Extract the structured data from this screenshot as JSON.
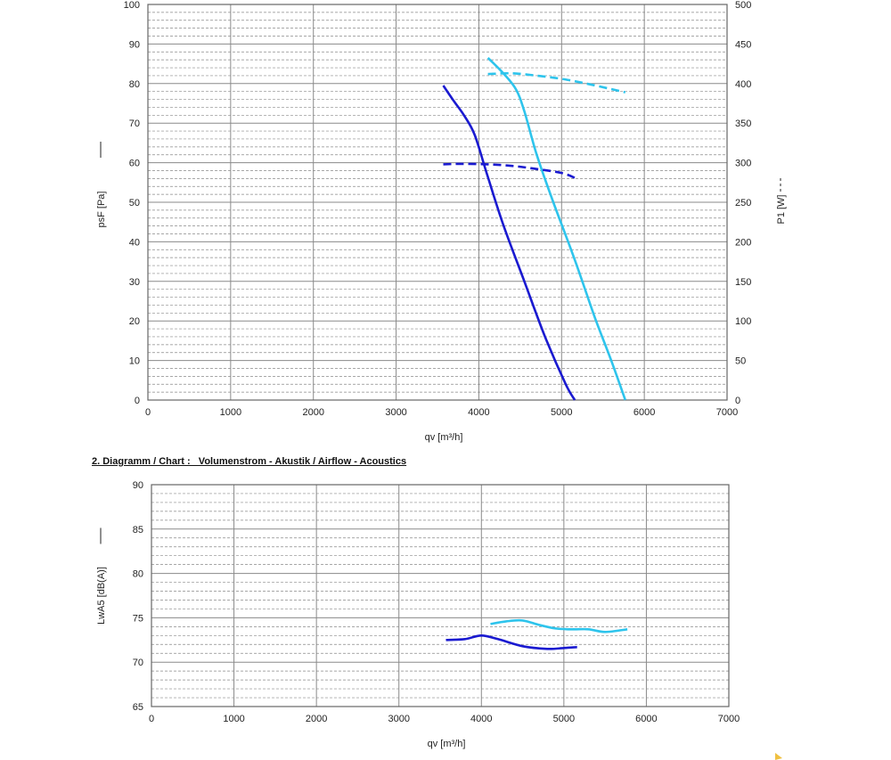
{
  "section_title": "2. Diagramm / Chart :   Volumenstrom - Akustik / Airflow - Acoustics",
  "chart_data": [
    {
      "type": "line",
      "xlabel": "qv [m³/h]",
      "ylabel": "psF [Pa]",
      "ylabel_secondary": "P1 [W]",
      "xlim": [
        0,
        7000
      ],
      "ylim": [
        0,
        100
      ],
      "ylim_secondary": [
        0,
        500
      ],
      "x_ticks": [
        "0",
        "1000",
        "2000",
        "3000",
        "4000",
        "5000",
        "6000",
        "7000"
      ],
      "y_ticks": [
        "0",
        "10",
        "20",
        "30",
        "40",
        "50",
        "60",
        "70",
        "80",
        "90",
        "100"
      ],
      "y_ticks_secondary": [
        "0",
        "50",
        "100",
        "150",
        "200",
        "250",
        "300",
        "350",
        "400",
        "450",
        "500"
      ],
      "grid": true,
      "colors": {
        "dark": "#1a1ad0",
        "light": "#2ec4ec"
      },
      "series": [
        {
          "axis": "left",
          "style": "solid",
          "color": "#1a1ad0",
          "x": [
            3570,
            3700,
            3820,
            3950,
            4100,
            4300,
            4550,
            4800,
            5050,
            5160
          ],
          "y": [
            79.5,
            75.5,
            72,
            67,
            57,
            44,
            30,
            16,
            4,
            0
          ]
        },
        {
          "axis": "left",
          "style": "solid",
          "color": "#2ec4ec",
          "x": [
            4110,
            4300,
            4450,
            4550,
            4700,
            4900,
            5150,
            5400,
            5600,
            5770
          ],
          "y": [
            86.5,
            82.5,
            78.5,
            73,
            62,
            50,
            36,
            21,
            10,
            0
          ]
        },
        {
          "axis": "right",
          "style": "dashed",
          "color": "#1a1ad0",
          "x": [
            3570,
            3800,
            4100,
            4400,
            4700,
            5000,
            5160
          ],
          "y": [
            298,
            298.5,
            298,
            296,
            292,
            287,
            281
          ]
        },
        {
          "axis": "right",
          "style": "dashed",
          "color": "#2ec4ec",
          "x": [
            4110,
            4400,
            4700,
            5000,
            5300,
            5600,
            5770
          ],
          "y": [
            412,
            413,
            410,
            406,
            400,
            393,
            389
          ]
        }
      ]
    },
    {
      "type": "line",
      "xlabel": "qv [m³/h]",
      "ylabel": "LwA5 [dB(A)]",
      "xlim": [
        0,
        7000
      ],
      "ylim": [
        65,
        90
      ],
      "x_ticks": [
        "0",
        "1000",
        "2000",
        "3000",
        "4000",
        "5000",
        "6000",
        "7000"
      ],
      "y_ticks": [
        "65",
        "70",
        "75",
        "80",
        "85",
        "90"
      ],
      "grid": true,
      "series": [
        {
          "style": "solid",
          "color": "#1a1ad0",
          "x": [
            3570,
            3800,
            4000,
            4200,
            4500,
            4800,
            5000,
            5160
          ],
          "y": [
            72.5,
            72.6,
            73.0,
            72.6,
            71.8,
            71.5,
            71.6,
            71.7
          ]
        },
        {
          "style": "solid",
          "color": "#2ec4ec",
          "x": [
            4110,
            4300,
            4500,
            4700,
            4900,
            5100,
            5300,
            5500,
            5770
          ],
          "y": [
            74.3,
            74.6,
            74.7,
            74.2,
            73.8,
            73.7,
            73.7,
            73.4,
            73.7
          ]
        }
      ]
    }
  ]
}
